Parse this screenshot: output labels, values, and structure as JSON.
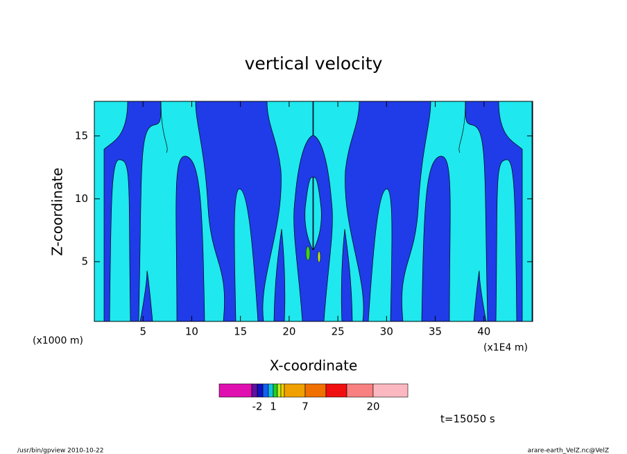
{
  "chart_data": {
    "type": "contour",
    "title": "vertical velocity",
    "xlabel": "X-coordinate",
    "ylabel": "Z-coordinate",
    "x_scale_label": "(x1E4 m)",
    "y_scale_label": "(x1000 m)",
    "xlim": [
      0,
      45
    ],
    "xticks": [
      5,
      10,
      15,
      20,
      25,
      30,
      35,
      40
    ],
    "ylim": [
      0.25,
      17.75
    ],
    "yticks": [
      5,
      10,
      15
    ],
    "colorbar": {
      "colors": [
        "#e010b0",
        "#6010a0",
        "#1010c0",
        "#1060f0",
        "#10c0e0",
        "#20d020",
        "#c0f020",
        "#f0d000",
        "#f0a000",
        "#f07000",
        "#f01010",
        "#f88080",
        "#fcb8c0"
      ],
      "ticks": [
        -2,
        1,
        7,
        20
      ]
    },
    "time_label": "t=15050 s",
    "footer_left": "/usr/bin/gpview   2010-10-22",
    "footer_right": "arare-earth_VelZ.nc@VelZ"
  }
}
